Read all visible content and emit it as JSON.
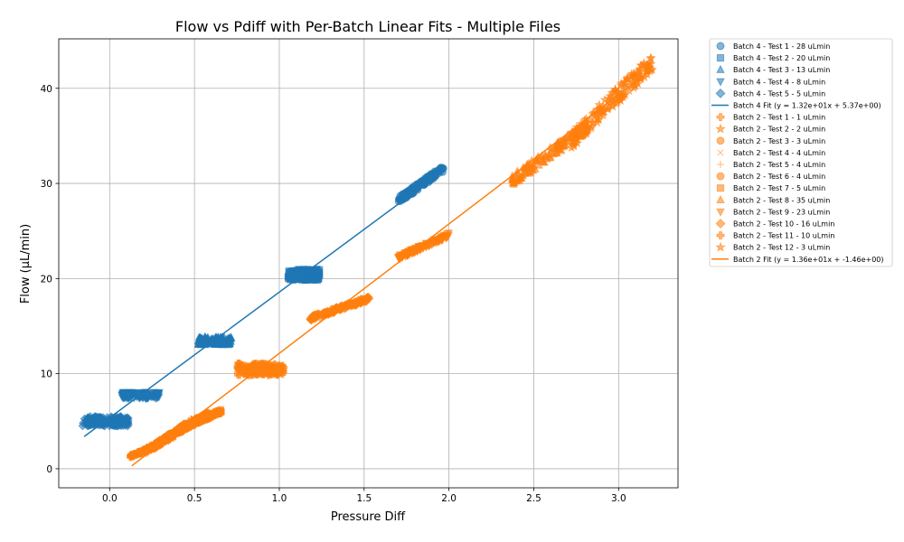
{
  "chart_data": {
    "type": "scatter",
    "title": "Flow vs Pdiff with Per-Batch Linear Fits - Multiple Files",
    "xlabel": "Pressure Diff",
    "ylabel": "Flow (µL/min)",
    "xlim": [
      -0.3,
      3.35
    ],
    "ylim": [
      -2.0,
      45.2
    ],
    "xticks": [
      0.0,
      0.5,
      1.0,
      1.5,
      2.0,
      2.5,
      3.0
    ],
    "xtick_labels": [
      "0.0",
      "0.5",
      "1.0",
      "1.5",
      "2.0",
      "2.5",
      "3.0"
    ],
    "yticks": [
      0,
      10,
      20,
      30,
      40
    ],
    "ytick_labels": [
      "0",
      "10",
      "20",
      "30",
      "40"
    ],
    "grid": true,
    "legend_position": "outside-right",
    "colors": {
      "batch4": "#1f77b4",
      "batch2": "#ff7f0e"
    },
    "series": [
      {
        "name": "Batch 4 - Test 1 - 28 uLmin",
        "batch": "batch4",
        "marker": "circle",
        "x_range": [
          1.7,
          1.97
        ],
        "y_range": [
          28.2,
          31.6
        ],
        "trend": "linear"
      },
      {
        "name": "Batch 4 - Test 2 - 20 uLmin",
        "batch": "batch4",
        "marker": "square",
        "x_range": [
          1.05,
          1.24
        ],
        "y_range": [
          19.8,
          21.0
        ],
        "trend": "flat"
      },
      {
        "name": "Batch 4 - Test 3 - 13 uLmin",
        "batch": "batch4",
        "marker": "triangle-up",
        "x_range": [
          0.52,
          0.72
        ],
        "y_range": [
          13.0,
          13.9
        ],
        "trend": "flat"
      },
      {
        "name": "Batch 4 - Test 4 - 8 uLmin",
        "batch": "batch4",
        "marker": "triangle-down",
        "x_range": [
          0.07,
          0.3
        ],
        "y_range": [
          7.4,
          8.1
        ],
        "trend": "flat"
      },
      {
        "name": "Batch 4 - Test 5 - 5 uLmin",
        "batch": "batch4",
        "marker": "diamond",
        "x_range": [
          -0.16,
          0.11
        ],
        "y_range": [
          4.5,
          5.5
        ],
        "trend": "flat"
      },
      {
        "name": "Batch 4 Fit (y = 1.32e+01x + 5.37e+00)",
        "batch": "batch4",
        "marker": "line",
        "fit": {
          "slope": 13.2,
          "intercept": 5.37,
          "x_range": [
            -0.15,
            1.95
          ]
        }
      },
      {
        "name": "Batch 2 - Test 1 - 1 uLmin",
        "batch": "batch2",
        "marker": "plus-filled",
        "x_range": [
          0.12,
          0.3
        ],
        "y_range": [
          1.3,
          2.6
        ],
        "trend": "linear"
      },
      {
        "name": "Batch 2 - Test 2 - 2 uLmin",
        "batch": "batch2",
        "marker": "star",
        "x_range": [
          0.2,
          0.38
        ],
        "y_range": [
          1.8,
          3.6
        ],
        "trend": "linear"
      },
      {
        "name": "Batch 2 - Test 3 - 3 uLmin",
        "batch": "batch2",
        "marker": "octagon",
        "x_range": [
          0.25,
          0.45
        ],
        "y_range": [
          2.2,
          4.6
        ],
        "trend": "linear"
      },
      {
        "name": "Batch 2 - Test 4 - 4 uLmin",
        "batch": "batch2",
        "marker": "x",
        "x_range": [
          0.33,
          0.5
        ],
        "y_range": [
          3.0,
          5.2
        ],
        "trend": "linear"
      },
      {
        "name": "Batch 2 - Test 5 - 4 uLmin",
        "batch": "batch2",
        "marker": "plus",
        "x_range": [
          0.36,
          0.52
        ],
        "y_range": [
          3.4,
          5.4
        ],
        "trend": "linear"
      },
      {
        "name": "Batch 2 - Test 6 - 4 uLmin",
        "batch": "batch2",
        "marker": "octagon",
        "x_range": [
          0.4,
          0.58
        ],
        "y_range": [
          3.8,
          5.8
        ],
        "trend": "linear"
      },
      {
        "name": "Batch 2 - Test 7 - 5 uLmin",
        "batch": "batch2",
        "marker": "square",
        "x_range": [
          0.45,
          0.66
        ],
        "y_range": [
          4.4,
          6.1
        ],
        "trend": "linear"
      },
      {
        "name": "Batch 2 - Test 8 - 35 uLmin",
        "batch": "batch2",
        "marker": "triangle-up",
        "x_range": [
          2.37,
          2.82
        ],
        "y_range": [
          30.3,
          36.0
        ],
        "trend": "linear"
      },
      {
        "name": "Batch 2 - Test 9 - 23 uLmin",
        "batch": "batch2",
        "marker": "triangle-down",
        "x_range": [
          1.7,
          2.0
        ],
        "y_range": [
          22.2,
          24.6
        ],
        "trend": "linear"
      },
      {
        "name": "Batch 2 - Test 10 - 16 uLmin",
        "batch": "batch2",
        "marker": "diamond",
        "x_range": [
          1.18,
          1.53
        ],
        "y_range": [
          15.8,
          17.9
        ],
        "trend": "linear"
      },
      {
        "name": "Batch 2 - Test 11 - 10 uLmin",
        "batch": "batch2",
        "marker": "plus-filled",
        "x_range": [
          0.75,
          1.03
        ],
        "y_range": [
          9.8,
          11.1
        ],
        "trend": "flat"
      },
      {
        "name": "Batch 2 - Test 12 - 3 uLmin",
        "batch": "batch2",
        "marker": "star",
        "x_range": [
          2.72,
          3.2
        ],
        "y_range": [
          34.5,
          42.8
        ],
        "trend": "linear"
      },
      {
        "name": "Batch 2 Fit (y = 1.36e+01x + -1.46e+00)",
        "batch": "batch2",
        "marker": "line",
        "fit": {
          "slope": 13.6,
          "intercept": -1.46,
          "x_range": [
            0.13,
            3.18
          ]
        }
      }
    ]
  }
}
